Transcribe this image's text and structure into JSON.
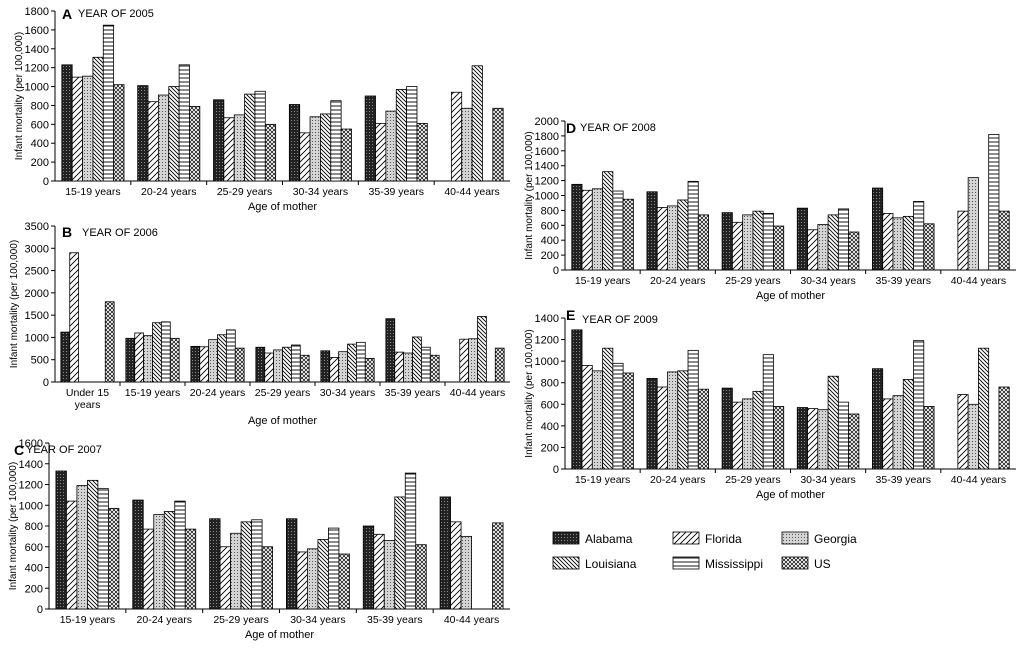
{
  "legend": {
    "items": [
      {
        "name": "Alabama",
        "pattern": "pat-dark"
      },
      {
        "name": "Florida",
        "pattern": "pat-diag-sparse"
      },
      {
        "name": "Georgia",
        "pattern": "pat-dots"
      },
      {
        "name": "Louisiana",
        "pattern": "pat-back"
      },
      {
        "name": "Mississippi",
        "pattern": "pat-horiz"
      },
      {
        "name": "US",
        "pattern": "pat-cross"
      }
    ]
  },
  "chart_data": [
    {
      "type": "bar",
      "letter": "A",
      "title": "YEAR OF 2005",
      "xlabel": "Age of mother",
      "ylabel": "Infant mortality (per 100,000)",
      "ylim": [
        0,
        1800
      ],
      "yticks": [
        0,
        200,
        400,
        600,
        800,
        1000,
        1200,
        1400,
        1600,
        1800
      ],
      "categories": [
        "15-19 years",
        "20-24 years",
        "25-29 years",
        "30-34 years",
        "35-39 years",
        "40-44 years"
      ],
      "series": [
        {
          "name": "Alabama",
          "values": [
            1230,
            1010,
            860,
            810,
            900,
            null
          ]
        },
        {
          "name": "Florida",
          "values": [
            1100,
            840,
            670,
            510,
            610,
            940
          ]
        },
        {
          "name": "Georgia",
          "values": [
            1110,
            910,
            700,
            680,
            740,
            770
          ]
        },
        {
          "name": "Louisiana",
          "values": [
            1310,
            1000,
            920,
            710,
            970,
            1220
          ]
        },
        {
          "name": "Mississippi",
          "values": [
            1650,
            1230,
            950,
            850,
            1000,
            null
          ]
        },
        {
          "name": "US",
          "values": [
            1020,
            790,
            600,
            550,
            610,
            770
          ]
        }
      ]
    },
    {
      "type": "bar",
      "letter": "B",
      "title": "YEAR OF 2006",
      "xlabel": "Age of mother",
      "ylabel": "Infant mortality (per 100,000)",
      "ylim": [
        0,
        3500
      ],
      "yticks": [
        0,
        500,
        1000,
        1500,
        2000,
        2500,
        3000,
        3500
      ],
      "categories": [
        "Under 15 years",
        "15-19 years",
        "20-24 years",
        "25-29 years",
        "30-34 years",
        "35-39 years",
        "40-44 years"
      ],
      "series": [
        {
          "name": "Alabama",
          "values": [
            1120,
            980,
            800,
            780,
            700,
            1420,
            null
          ]
        },
        {
          "name": "Florida",
          "values": [
            2900,
            1100,
            790,
            650,
            550,
            670,
            960
          ]
        },
        {
          "name": "Georgia",
          "values": [
            null,
            1040,
            950,
            720,
            680,
            650,
            970
          ]
        },
        {
          "name": "Louisiana",
          "values": [
            null,
            1330,
            1060,
            780,
            850,
            1010,
            1470
          ]
        },
        {
          "name": "Mississippi",
          "values": [
            null,
            1350,
            1170,
            830,
            890,
            780,
            null
          ]
        },
        {
          "name": "US",
          "values": [
            1800,
            980,
            760,
            600,
            530,
            600,
            760
          ]
        }
      ]
    },
    {
      "type": "bar",
      "letter": "C",
      "title": "YEAR OF 2007",
      "xlabel": "Age of mother",
      "ylabel": "Infant mortality (per 100,000)",
      "ylim": [
        0,
        1600
      ],
      "yticks": [
        0,
        200,
        400,
        600,
        800,
        1000,
        1200,
        1400,
        1600
      ],
      "categories": [
        "15-19 years",
        "20-24 years",
        "25-29 years",
        "30-34 years",
        "35-39 years",
        "40-44 years"
      ],
      "series": [
        {
          "name": "Alabama",
          "values": [
            1330,
            1050,
            870,
            870,
            800,
            1080
          ]
        },
        {
          "name": "Florida",
          "values": [
            1040,
            770,
            600,
            550,
            720,
            840
          ]
        },
        {
          "name": "Georgia",
          "values": [
            1190,
            910,
            730,
            580,
            660,
            700
          ]
        },
        {
          "name": "Louisiana",
          "values": [
            1240,
            940,
            840,
            670,
            1080,
            null
          ]
        },
        {
          "name": "Mississippi",
          "values": [
            1160,
            1040,
            860,
            780,
            1310,
            null
          ]
        },
        {
          "name": "US",
          "values": [
            970,
            770,
            600,
            530,
            620,
            830
          ]
        }
      ]
    },
    {
      "type": "bar",
      "letter": "D",
      "title": "YEAR OF 2008",
      "xlabel": "Age of mother",
      "ylabel": "Infant mortality (per 100,000)",
      "ylim": [
        0,
        2000
      ],
      "yticks": [
        0,
        200,
        400,
        600,
        800,
        1000,
        1200,
        1400,
        1600,
        1800,
        2000
      ],
      "categories": [
        "15-19 years",
        "20-24 years",
        "25-29 years",
        "30-34 years",
        "35-39 years",
        "40-44 years"
      ],
      "series": [
        {
          "name": "Alabama",
          "values": [
            1150,
            1050,
            770,
            830,
            1100,
            null
          ]
        },
        {
          "name": "Florida",
          "values": [
            1070,
            840,
            640,
            540,
            760,
            790
          ]
        },
        {
          "name": "Georgia",
          "values": [
            1090,
            860,
            740,
            610,
            700,
            1240
          ]
        },
        {
          "name": "Louisiana",
          "values": [
            1320,
            940,
            790,
            740,
            720,
            null
          ]
        },
        {
          "name": "Mississippi",
          "values": [
            1060,
            1190,
            760,
            820,
            920,
            1820
          ]
        },
        {
          "name": "US",
          "values": [
            950,
            740,
            590,
            510,
            620,
            790
          ]
        }
      ]
    },
    {
      "type": "bar",
      "letter": "E",
      "title": "YEAR OF 2009",
      "xlabel": "Age of mother",
      "ylabel": "Infant mortality (per 100,000)",
      "ylim": [
        0,
        1400
      ],
      "yticks": [
        0,
        200,
        400,
        600,
        800,
        1000,
        1200,
        1400
      ],
      "categories": [
        "15-19 years",
        "20-24 years",
        "25-29 years",
        "30-34 years",
        "35-39 years",
        "40-44 years"
      ],
      "series": [
        {
          "name": "Alabama",
          "values": [
            1290,
            840,
            750,
            570,
            930,
            null
          ]
        },
        {
          "name": "Florida",
          "values": [
            960,
            760,
            620,
            560,
            650,
            690
          ]
        },
        {
          "name": "Georgia",
          "values": [
            910,
            900,
            650,
            550,
            680,
            600
          ]
        },
        {
          "name": "Louisiana",
          "values": [
            1120,
            910,
            720,
            860,
            830,
            1120
          ]
        },
        {
          "name": "Mississippi",
          "values": [
            980,
            1100,
            1060,
            620,
            1190,
            null
          ]
        },
        {
          "name": "US",
          "values": [
            890,
            740,
            580,
            510,
            580,
            760
          ]
        }
      ]
    }
  ]
}
